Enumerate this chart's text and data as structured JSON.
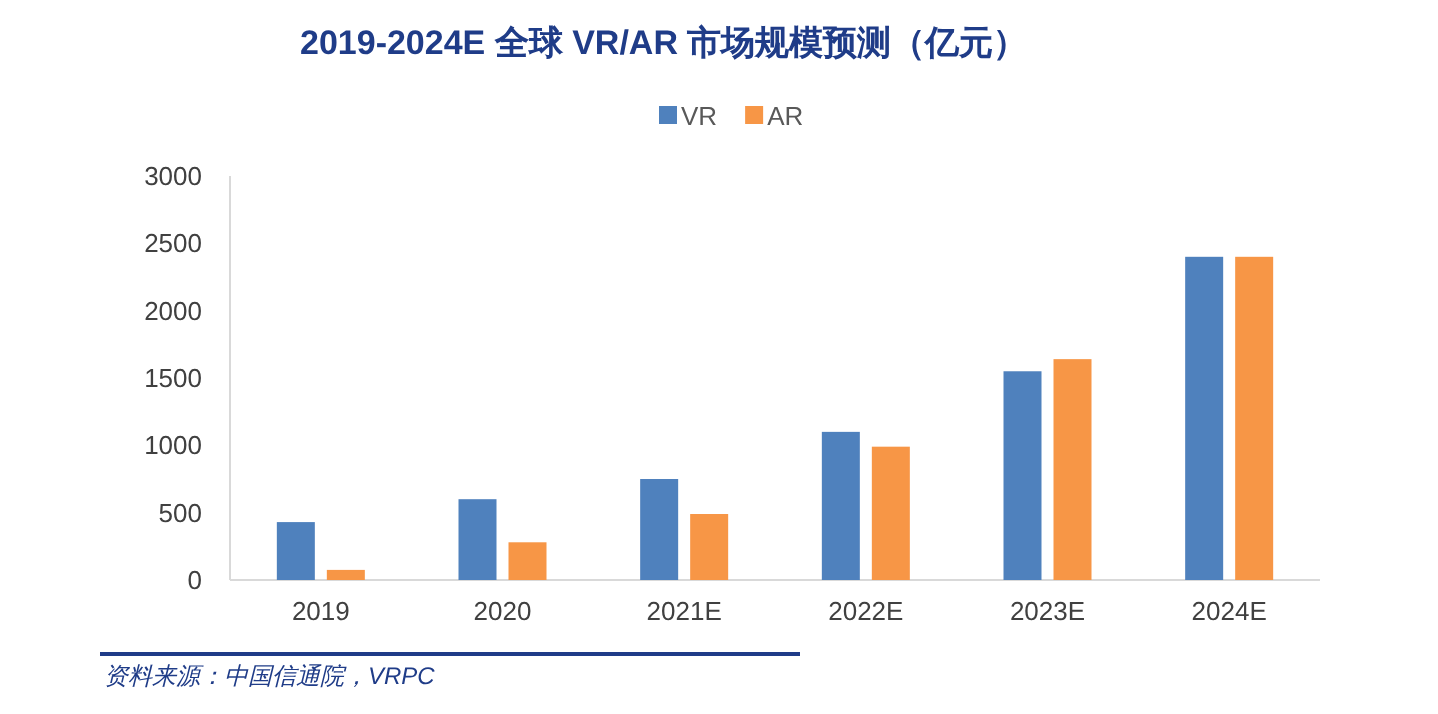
{
  "chart_data": {
    "type": "bar",
    "title": "2019-2024E 全球 VR/AR 市场规模预测（亿元）",
    "categories": [
      "2019",
      "2020",
      "2021E",
      "2022E",
      "2023E",
      "2024E"
    ],
    "series": [
      {
        "name": "VR",
        "color": "#4f81bd",
        "values": [
          430,
          600,
          750,
          1100,
          1550,
          2400
        ]
      },
      {
        "name": "AR",
        "color": "#f79646",
        "values": [
          75,
          280,
          490,
          990,
          1640,
          2400
        ]
      }
    ],
    "ylim": [
      0,
      3000
    ],
    "yticks": [
      0,
      500,
      1000,
      1500,
      2000,
      2500,
      3000
    ],
    "legend": "top",
    "annotations": [
      "资料来源：中国信通院，VRPC"
    ]
  }
}
